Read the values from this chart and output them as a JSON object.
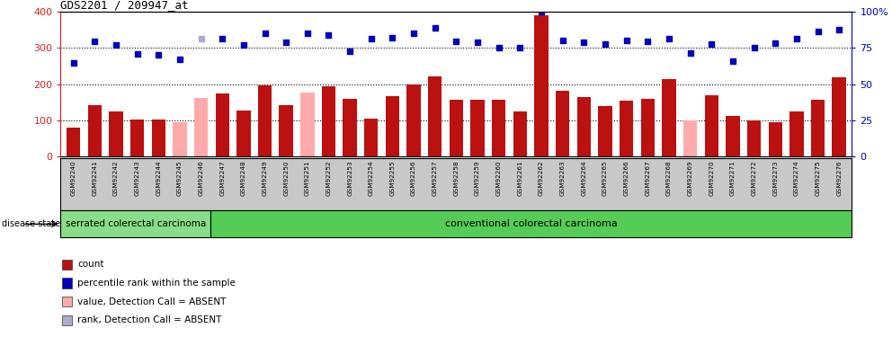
{
  "title": "GDS2201 / 209947_at",
  "samples": [
    "GSM92240",
    "GSM92241",
    "GSM92242",
    "GSM92243",
    "GSM92244",
    "GSM92245",
    "GSM92246",
    "GSM92247",
    "GSM92248",
    "GSM92249",
    "GSM92250",
    "GSM92251",
    "GSM92252",
    "GSM92253",
    "GSM92254",
    "GSM92255",
    "GSM92256",
    "GSM92257",
    "GSM92258",
    "GSM92259",
    "GSM92260",
    "GSM92261",
    "GSM92262",
    "GSM92263",
    "GSM92264",
    "GSM92265",
    "GSM92266",
    "GSM92267",
    "GSM92268",
    "GSM92269",
    "GSM92270",
    "GSM92271",
    "GSM92272",
    "GSM92273",
    "GSM92274",
    "GSM92275",
    "GSM92276"
  ],
  "bar_values": [
    80,
    143,
    125,
    102,
    102,
    95,
    162,
    175,
    128,
    198,
    143,
    178,
    195,
    160,
    106,
    167,
    200,
    222,
    158,
    157,
    157,
    125,
    390,
    182,
    165,
    141,
    155,
    160,
    215,
    100,
    170,
    113,
    100,
    95,
    125,
    158,
    220
  ],
  "absent_bar": [
    false,
    false,
    false,
    false,
    false,
    true,
    true,
    false,
    false,
    false,
    false,
    true,
    false,
    false,
    false,
    false,
    false,
    false,
    false,
    false,
    false,
    false,
    false,
    false,
    false,
    false,
    false,
    false,
    false,
    true,
    false,
    false,
    false,
    false,
    false,
    false,
    false
  ],
  "rank_values": [
    260,
    318,
    308,
    284,
    282,
    270,
    327,
    325,
    309,
    340,
    315,
    340,
    335,
    290,
    325,
    328,
    342,
    355,
    318,
    317,
    300,
    300,
    400,
    320,
    316,
    310,
    322,
    318,
    326,
    285,
    310,
    265,
    302,
    313,
    327,
    345,
    350
  ],
  "absent_rank": [
    false,
    false,
    false,
    false,
    false,
    false,
    true,
    false,
    false,
    false,
    false,
    false,
    false,
    false,
    false,
    false,
    false,
    false,
    false,
    false,
    false,
    false,
    false,
    false,
    false,
    false,
    false,
    false,
    false,
    false,
    false,
    false,
    false,
    false,
    false,
    false,
    false
  ],
  "serrated_count": 7,
  "ylim_left": [
    0,
    400
  ],
  "ylim_right": [
    0,
    100
  ],
  "yticks_left": [
    0,
    100,
    200,
    300,
    400
  ],
  "yticks_right": [
    0,
    25,
    50,
    75,
    100
  ],
  "ytick_right_labels": [
    "0",
    "25",
    "50",
    "75",
    "100%"
  ],
  "bar_color": "#BB1111",
  "bar_absent_color": "#FFAAAA",
  "rank_color": "#0000BB",
  "rank_absent_color": "#AAAACC",
  "bg_color": "#FFFFFF",
  "tick_area_color": "#C8C8C8",
  "serrated_color": "#88DD88",
  "conventional_color": "#55CC55",
  "legend_items": [
    {
      "label": "count",
      "color": "#BB1111"
    },
    {
      "label": "percentile rank within the sample",
      "color": "#0000BB"
    },
    {
      "label": "value, Detection Call = ABSENT",
      "color": "#FFAAAA"
    },
    {
      "label": "rank, Detection Call = ABSENT",
      "color": "#AAAACC"
    }
  ],
  "gridline_y": [
    100,
    200,
    300
  ],
  "left_axis_color": "#CC2222",
  "right_axis_color": "#0000BB"
}
